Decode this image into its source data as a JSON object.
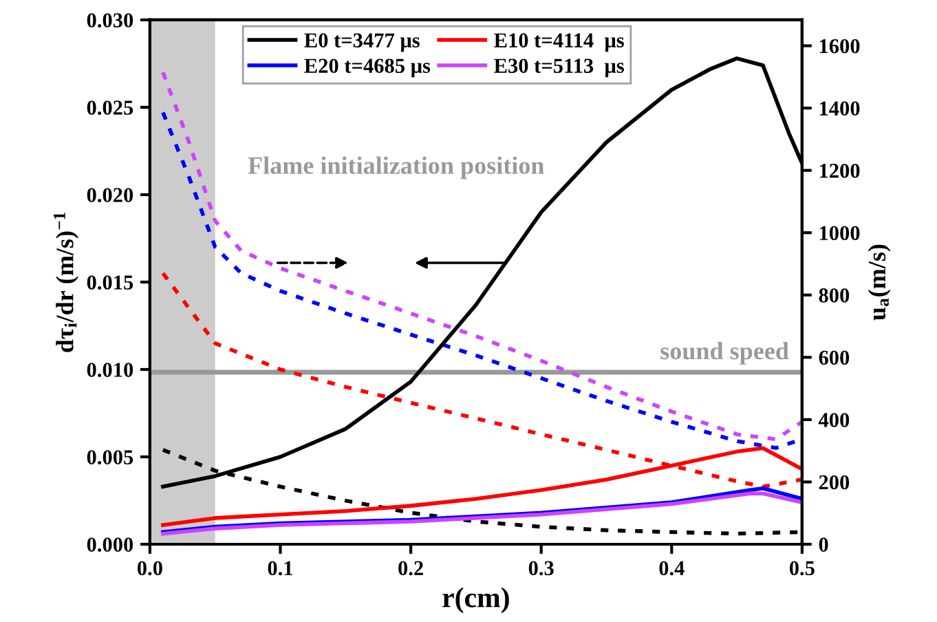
{
  "chart_data": {
    "type": "line",
    "xlabel": "r(cm)",
    "ylabel": "dτ$_{i}$/dr (m/s)$^{−1}$",
    "y2label": "u$_{a}$(m/s)",
    "xlim": [
      0,
      0.5
    ],
    "xticks": [
      {
        "value": 0,
        "label": "0.0"
      },
      0.1,
      0.2,
      0.3,
      0.4,
      0.5
    ],
    "ylim": [
      0,
      0.03
    ],
    "yticks": [
      {
        "value": 0,
        "label": "0.000"
      },
      {
        "value": 0.005,
        "label": "0.005"
      },
      {
        "value": 0.01,
        "label": "0.010"
      },
      {
        "value": 0.015,
        "label": "0.015"
      },
      {
        "value": 0.02,
        "label": "0.020"
      },
      {
        "value": 0.025,
        "label": "0.025"
      },
      {
        "value": 0.03,
        "label": "0.030"
      }
    ],
    "y2lim": [
      0,
      1683
    ],
    "y2ticks": [
      0,
      200,
      400,
      600,
      800,
      1000,
      1200,
      1400,
      1600
    ],
    "legend": "top",
    "grid": false,
    "series": [
      {
        "name": "E0 t=3477 μs",
        "color": "#000000",
        "line_style": "solid",
        "x": [
          0.01,
          0.05,
          0.1,
          0.15,
          0.2,
          0.25,
          0.3,
          0.35,
          0.4,
          0.43,
          0.45,
          0.47,
          0.49,
          0.5
        ],
        "values": [
          0.0033,
          0.0039,
          0.005,
          0.0066,
          0.0093,
          0.0137,
          0.019,
          0.023,
          0.026,
          0.0272,
          0.0278,
          0.0274,
          0.0235,
          0.0218
        ]
      },
      {
        "name": "E10 t=4114  μs",
        "color": "#ff0000",
        "line_style": "solid",
        "x": [
          0.01,
          0.05,
          0.1,
          0.15,
          0.2,
          0.25,
          0.3,
          0.35,
          0.4,
          0.45,
          0.47,
          0.5
        ],
        "values": [
          0.0011,
          0.0015,
          0.0017,
          0.0019,
          0.0022,
          0.0026,
          0.0031,
          0.0037,
          0.0045,
          0.0053,
          0.0055,
          0.0043
        ]
      },
      {
        "name": "E20 t=4685 μs",
        "color": "#0000ff",
        "line_style": "solid",
        "x": [
          0.01,
          0.05,
          0.1,
          0.2,
          0.3,
          0.4,
          0.46,
          0.47,
          0.5
        ],
        "values": [
          0.0007,
          0.001,
          0.0012,
          0.0014,
          0.0018,
          0.0024,
          0.0031,
          0.0032,
          0.0026
        ]
      },
      {
        "name": "E30 t=5113  μs",
        "color": "#cc44ff",
        "line_style": "solid",
        "x": [
          0.01,
          0.05,
          0.1,
          0.2,
          0.3,
          0.4,
          0.46,
          0.47,
          0.5
        ],
        "values": [
          0.0006,
          0.0009,
          0.0011,
          0.0013,
          0.0017,
          0.0023,
          0.0029,
          0.0029,
          0.0024
        ]
      },
      {
        "color": "#000000",
        "line_style": "dashed",
        "axis": "y2",
        "x": [
          0.01,
          0.05,
          0.1,
          0.15,
          0.2,
          0.25,
          0.3,
          0.35,
          0.4,
          0.45,
          0.5
        ],
        "values": [
          303,
          236,
          185,
          140,
          101,
          73,
          56,
          45,
          39,
          34,
          39
        ]
      },
      {
        "color": "#ff0000",
        "line_style": "dashed",
        "axis": "y2",
        "x": [
          0.01,
          0.05,
          0.1,
          0.15,
          0.2,
          0.25,
          0.3,
          0.35,
          0.4,
          0.45,
          0.47,
          0.5
        ],
        "values": [
          870,
          645,
          561,
          505,
          454,
          404,
          353,
          303,
          252,
          202,
          185,
          208
        ]
      },
      {
        "color": "#0000ff",
        "line_style": "dashed",
        "axis": "y2",
        "x": [
          0.01,
          0.03,
          0.05,
          0.07,
          0.1,
          0.15,
          0.2,
          0.25,
          0.3,
          0.35,
          0.4,
          0.45,
          0.48,
          0.5
        ],
        "values": [
          1386,
          1178,
          954,
          870,
          813,
          741,
          673,
          606,
          533,
          460,
          393,
          331,
          309,
          337
        ]
      },
      {
        "color": "#cc44ff",
        "line_style": "dashed",
        "axis": "y2",
        "x": [
          0.01,
          0.03,
          0.05,
          0.07,
          0.1,
          0.15,
          0.2,
          0.25,
          0.3,
          0.35,
          0.4,
          0.45,
          0.48,
          0.5
        ],
        "values": [
          1515,
          1290,
          1038,
          942,
          886,
          813,
          741,
          668,
          589,
          505,
          426,
          353,
          337,
          393
        ]
      }
    ],
    "ref_lines": [
      {
        "axis": "y2",
        "value": 552,
        "label": "sound speed",
        "color": "#999999",
        "line_style": "solid"
      }
    ],
    "bands": [
      {
        "axis": "x",
        "from": 0,
        "to": 0.05,
        "label": "Flame initialization position",
        "color": "#cccccc"
      }
    ]
  }
}
